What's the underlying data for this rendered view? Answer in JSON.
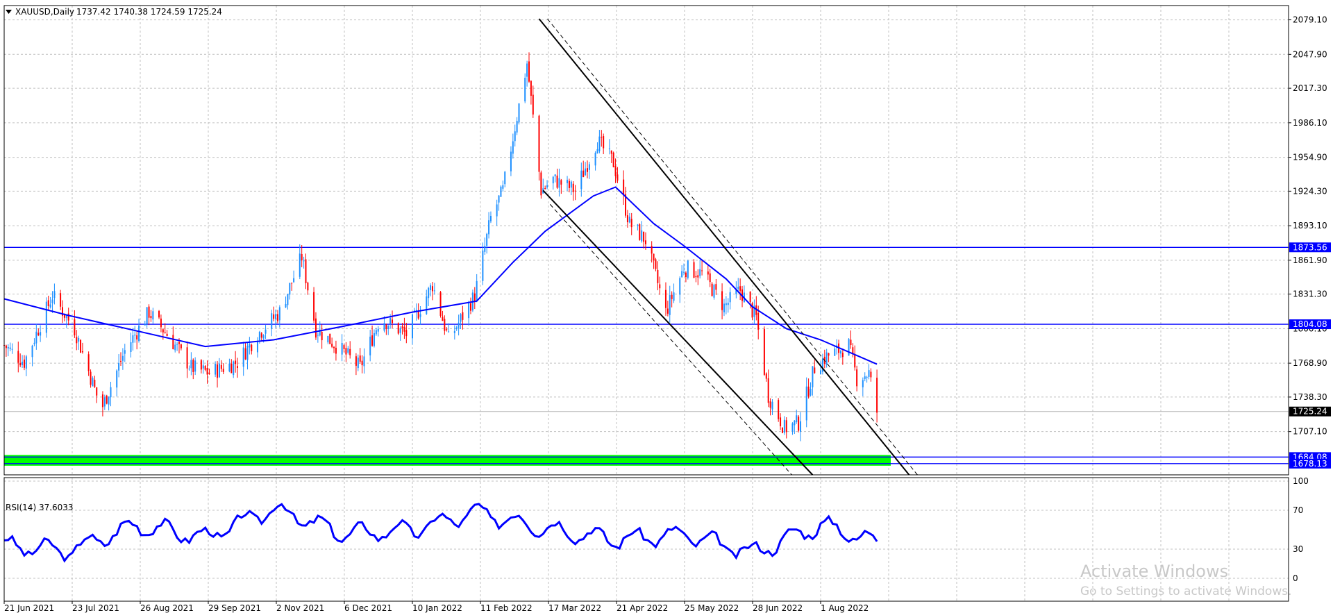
{
  "header": {
    "symbol": "XAUUSD,Daily",
    "ohlc": "1737.42 1740.38 1724.59 1725.24"
  },
  "price_axis": {
    "ticks": [
      "2079.10",
      "2047.90",
      "2017.30",
      "1986.10",
      "1954.90",
      "1924.30",
      "1893.10",
      "1861.90",
      "1831.30",
      "1800.10",
      "1768.90",
      "1738.30",
      "1707.10"
    ],
    "current_price": "1725.24",
    "markers": [
      {
        "label": "1873.56",
        "value": 1873.56
      },
      {
        "label": "1804.08",
        "value": 1804.08
      },
      {
        "label": "1684.08",
        "value": 1684.08
      },
      {
        "label": "1678.13",
        "value": 1678.13
      }
    ]
  },
  "rsi": {
    "label": "RSI(14) 37.6033",
    "ticks": [
      "100",
      "70",
      "30",
      "0"
    ]
  },
  "time_axis": [
    "21 Jun 2021",
    "23 Jul 2021",
    "26 Aug 2021",
    "29 Sep 2021",
    "2 Nov 2021",
    "6 Dec 2021",
    "10 Jan 2022",
    "11 Feb 2022",
    "17 Mar 2022",
    "21 Apr 2022",
    "25 May 2022",
    "28 Jun 2022",
    "1 Aug 2022"
  ],
  "watermark": {
    "line1": "Activate Windows",
    "line2": "Go to Settings to activate Windows."
  },
  "colors": {
    "bull": "#1e90ff",
    "bear": "#ff0000",
    "ma": "#0000ff",
    "level_line": "#0000ff",
    "support_zone": "#00ff00",
    "rsi_line": "#0000ff",
    "grid": "#c0c0c0",
    "trend": "#000000"
  },
  "chart_data": {
    "type": "candlestick",
    "symbol": "XAUUSD",
    "timeframe": "Daily",
    "ylim": [
      1668,
      2092
    ],
    "anchors": [
      [
        "21 Jun 2021",
        1785
      ],
      [
        "1 Jul 2021",
        1770
      ],
      [
        "15 Jul 2021",
        1830
      ],
      [
        "26 Jul 2021",
        1800
      ],
      [
        "6 Aug 2021",
        1740
      ],
      [
        "9 Aug 2021",
        1730
      ],
      [
        "20 Aug 2021",
        1780
      ],
      [
        "1 Sep 2021",
        1815
      ],
      [
        "10 Sep 2021",
        1795
      ],
      [
        "22 Sep 2021",
        1765
      ],
      [
        "1 Oct 2021",
        1760
      ],
      [
        "15 Oct 2021",
        1770
      ],
      [
        "25 Oct 2021",
        1795
      ],
      [
        "5 Nov 2021",
        1815
      ],
      [
        "16 Nov 2021",
        1865
      ],
      [
        "23 Nov 2021",
        1800
      ],
      [
        "3 Dec 2021",
        1785
      ],
      [
        "15 Dec 2021",
        1765
      ],
      [
        "25 Dec 2021",
        1810
      ],
      [
        "7 Jan 2022",
        1795
      ],
      [
        "20 Jan 2022",
        1840
      ],
      [
        "28 Jan 2022",
        1790
      ],
      [
        "10 Feb 2022",
        1830
      ],
      [
        "18 Feb 2022",
        1900
      ],
      [
        "24 Feb 2022",
        1925
      ],
      [
        "8 Mar 2022",
        2040
      ],
      [
        "15 Mar 2022",
        1925
      ],
      [
        "21 Mar 2022",
        1935
      ],
      [
        "1 Apr 2022",
        1925
      ],
      [
        "12 Apr 2022",
        1970
      ],
      [
        "20 Apr 2022",
        1950
      ],
      [
        "28 Apr 2022",
        1895
      ],
      [
        "6 May 2022",
        1880
      ],
      [
        "16 May 2022",
        1815
      ],
      [
        "25 May 2022",
        1855
      ],
      [
        "3 Jun 2022",
        1850
      ],
      [
        "14 Jun 2022",
        1820
      ],
      [
        "22 Jun 2022",
        1835
      ],
      [
        "30 Jun 2022",
        1810
      ],
      [
        "6 Jul 2022",
        1740
      ],
      [
        "14 Jul 2022",
        1710
      ],
      [
        "21 Jul 2022",
        1715
      ],
      [
        "29 Jul 2022",
        1765
      ],
      [
        "4 Aug 2022",
        1775
      ],
      [
        "15 Aug 2022",
        1785
      ],
      [
        "19 Aug 2022",
        1755
      ],
      [
        "25 Aug 2022",
        1760
      ],
      [
        "29 Aug 2022",
        1725
      ]
    ],
    "moving_average": [
      [
        "21 Jun 2021",
        1827
      ],
      [
        "23 Jul 2021",
        1812
      ],
      [
        "26 Aug 2021",
        1798
      ],
      [
        "29 Sep 2021",
        1784
      ],
      [
        "2 Nov 2021",
        1790
      ],
      [
        "6 Dec 2021",
        1802
      ],
      [
        "10 Jan 2022",
        1815
      ],
      [
        "11 Feb 2022",
        1825
      ],
      [
        "1 Mar 2022",
        1860
      ],
      [
        "17 Mar 2022",
        1888
      ],
      [
        "10 Apr 2022",
        1920
      ],
      [
        "21 Apr 2022",
        1928
      ],
      [
        "10 May 2022",
        1895
      ],
      [
        "25 May 2022",
        1875
      ],
      [
        "15 Jun 2022",
        1845
      ],
      [
        "28 Jun 2022",
        1820
      ],
      [
        "15 Jul 2022",
        1800
      ],
      [
        "1 Aug 2022",
        1790
      ],
      [
        "29 Aug 2022",
        1768
      ]
    ],
    "horizontal_levels": [
      1873.56,
      1804.08,
      1684.08,
      1678.13
    ],
    "support_zone": [
      1678.13,
      1684.08
    ],
    "rsi_period": 14,
    "rsi_last": 37.6033,
    "rsi_ylim": [
      0,
      100
    ],
    "rsi_series": [
      [
        "21 Jun 2021",
        34
      ],
      [
        "23 Jul 2021",
        28
      ],
      [
        "26 Aug 2021",
        55
      ],
      [
        "29 Sep 2021",
        42
      ],
      [
        "2 Nov 2021",
        72
      ],
      [
        "6 Dec 2021",
        46
      ],
      [
        "10 Jan 2022",
        50
      ],
      [
        "11 Feb 2022",
        68
      ],
      [
        "17 Mar 2022",
        52
      ],
      [
        "21 Apr 2022",
        40
      ],
      [
        "25 May 2022",
        45
      ],
      [
        "28 Jun 2022",
        26
      ],
      [
        "1 Aug 2022",
        55
      ],
      [
        "29 Aug 2022",
        38
      ]
    ]
  }
}
